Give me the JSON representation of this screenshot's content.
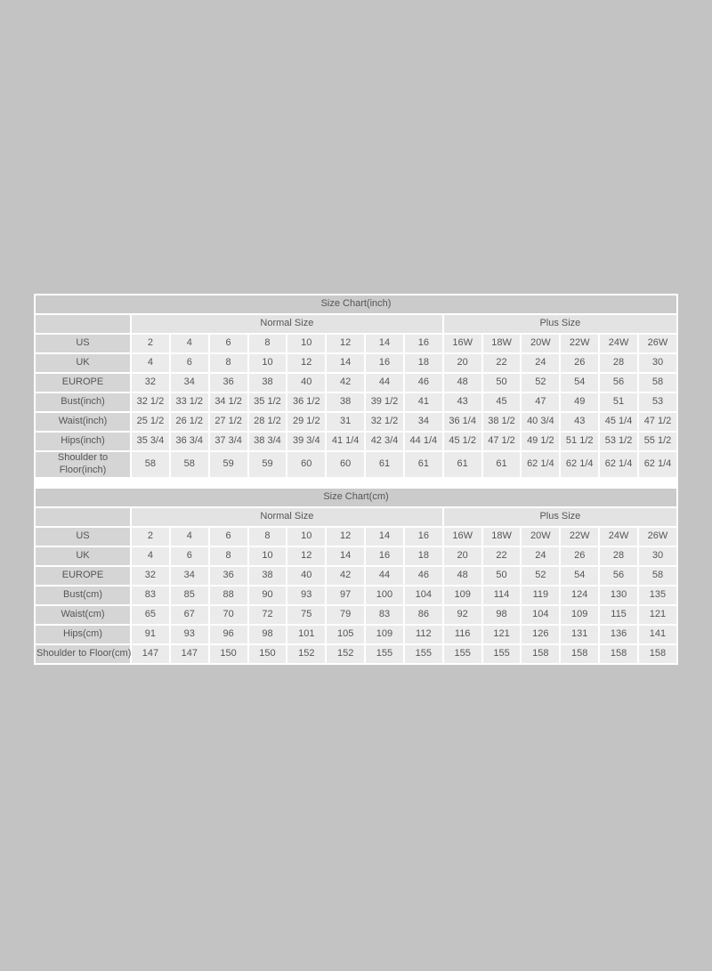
{
  "colors": {
    "page_background": "#c3c3c3",
    "panel_background": "#ffffff",
    "title_bar": "#cbcbcb",
    "row_label_cell": "#d5d5d5",
    "group_header_cell": "#e3e3e3",
    "data_cell": "#ebebeb",
    "text": "#555555"
  },
  "tables": [
    {
      "id": "inch",
      "title": "Size Chart(inch)",
      "group_headers": {
        "normal": "Normal Size",
        "plus": "Plus Size"
      },
      "normal_col_count": 8,
      "plus_col_count": 6,
      "rows": [
        {
          "label": "US",
          "values": [
            "2",
            "4",
            "6",
            "8",
            "10",
            "12",
            "14",
            "16",
            "16W",
            "18W",
            "20W",
            "22W",
            "24W",
            "26W"
          ]
        },
        {
          "label": "UK",
          "values": [
            "4",
            "6",
            "8",
            "10",
            "12",
            "14",
            "16",
            "18",
            "20",
            "22",
            "24",
            "26",
            "28",
            "30"
          ]
        },
        {
          "label": "EUROPE",
          "values": [
            "32",
            "34",
            "36",
            "38",
            "40",
            "42",
            "44",
            "46",
            "48",
            "50",
            "52",
            "54",
            "56",
            "58"
          ]
        },
        {
          "label": "Bust(inch)",
          "values": [
            "32 1/2",
            "33 1/2",
            "34 1/2",
            "35 1/2",
            "36 1/2",
            "38",
            "39 1/2",
            "41",
            "43",
            "45",
            "47",
            "49",
            "51",
            "53"
          ]
        },
        {
          "label": "Waist(inch)",
          "values": [
            "25 1/2",
            "26 1/2",
            "27 1/2",
            "28 1/2",
            "29 1/2",
            "31",
            "32 1/2",
            "34",
            "36 1/4",
            "38 1/2",
            "40 3/4",
            "43",
            "45 1/4",
            "47 1/2"
          ]
        },
        {
          "label": "Hips(inch)",
          "values": [
            "35 3/4",
            "36 3/4",
            "37 3/4",
            "38 3/4",
            "39 3/4",
            "41 1/4",
            "42 3/4",
            "44 1/4",
            "45 1/2",
            "47 1/2",
            "49 1/2",
            "51 1/2",
            "53 1/2",
            "55 1/2"
          ]
        },
        {
          "label": "Shoulder to Floor(inch)",
          "values": [
            "58",
            "58",
            "59",
            "59",
            "60",
            "60",
            "61",
            "61",
            "61",
            "61",
            "62 1/4",
            "62 1/4",
            "62 1/4",
            "62 1/4"
          ]
        }
      ]
    },
    {
      "id": "cm",
      "title": "Size Chart(cm)",
      "group_headers": {
        "normal": "Normal Size",
        "plus": "Plus Size"
      },
      "normal_col_count": 8,
      "plus_col_count": 6,
      "rows": [
        {
          "label": "US",
          "values": [
            "2",
            "4",
            "6",
            "8",
            "10",
            "12",
            "14",
            "16",
            "16W",
            "18W",
            "20W",
            "22W",
            "24W",
            "26W"
          ]
        },
        {
          "label": "UK",
          "values": [
            "4",
            "6",
            "8",
            "10",
            "12",
            "14",
            "16",
            "18",
            "20",
            "22",
            "24",
            "26",
            "28",
            "30"
          ]
        },
        {
          "label": "EUROPE",
          "values": [
            "32",
            "34",
            "36",
            "38",
            "40",
            "42",
            "44",
            "46",
            "48",
            "50",
            "52",
            "54",
            "56",
            "58"
          ]
        },
        {
          "label": "Bust(cm)",
          "values": [
            "83",
            "85",
            "88",
            "90",
            "93",
            "97",
            "100",
            "104",
            "109",
            "114",
            "119",
            "124",
            "130",
            "135"
          ]
        },
        {
          "label": "Waist(cm)",
          "values": [
            "65",
            "67",
            "70",
            "72",
            "75",
            "79",
            "83",
            "86",
            "92",
            "98",
            "104",
            "109",
            "115",
            "121"
          ]
        },
        {
          "label": "Hips(cm)",
          "values": [
            "91",
            "93",
            "96",
            "98",
            "101",
            "105",
            "109",
            "112",
            "116",
            "121",
            "126",
            "131",
            "136",
            "141"
          ]
        },
        {
          "label": "Shoulder to Floor(cm)",
          "values": [
            "147",
            "147",
            "150",
            "150",
            "152",
            "152",
            "155",
            "155",
            "155",
            "155",
            "158",
            "158",
            "158",
            "158"
          ]
        }
      ]
    }
  ]
}
